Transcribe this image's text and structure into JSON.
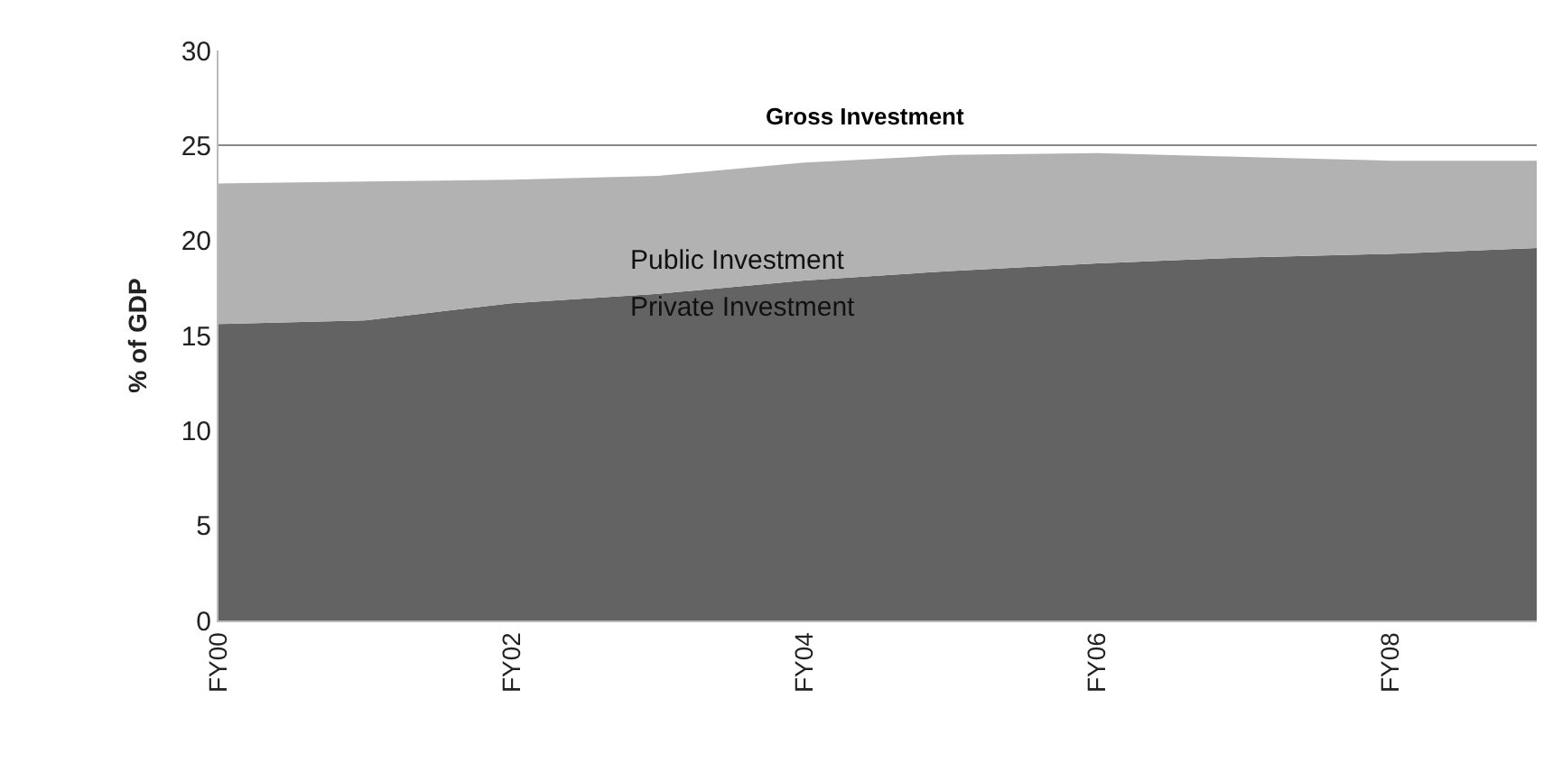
{
  "chart_data": {
    "type": "area",
    "stacked": true,
    "ylabel": "% of GDP",
    "categories": [
      "FY00",
      null,
      "FY02",
      null,
      "FY04",
      null,
      "FY06",
      null,
      "FY08",
      null
    ],
    "series": [
      {
        "name": "Private Investment",
        "color": "#636363",
        "values": [
          15.6,
          15.8,
          16.7,
          17.2,
          17.9,
          18.4,
          18.8,
          19.1,
          19.3,
          19.6
        ]
      },
      {
        "name": "Public Investment",
        "color": "#b2b2b2",
        "values": [
          7.4,
          7.3,
          6.5,
          6.2,
          6.2,
          6.1,
          5.8,
          5.3,
          4.9,
          4.6
        ]
      }
    ],
    "annotations": [
      "Gross Investment"
    ],
    "ylim": [
      0,
      30
    ],
    "yticks": [
      0,
      5,
      10,
      15,
      20,
      25,
      30
    ],
    "grid": "y",
    "legend": false
  }
}
